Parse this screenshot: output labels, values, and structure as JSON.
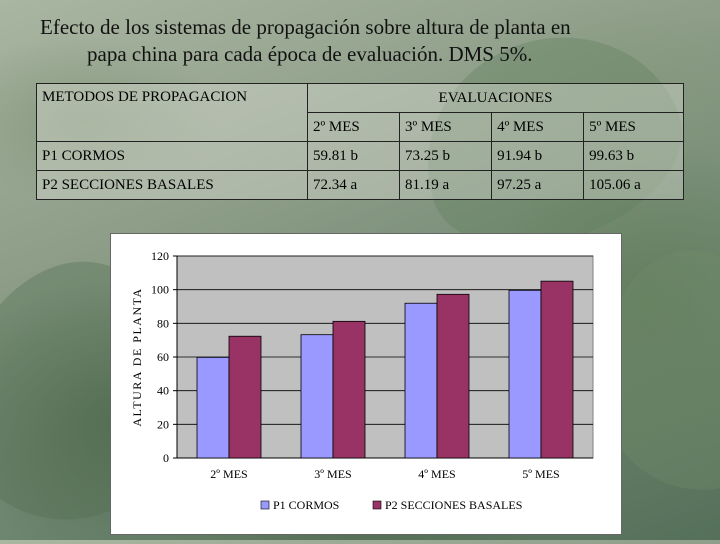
{
  "title": {
    "line1": "Efecto de los sistemas de propagación sobre altura de planta en",
    "line2": "papa china para cada época de evaluación. DMS 5%."
  },
  "table": {
    "header_method": "METODOS DE PROPAGACION",
    "header_eval": "EVALUACIONES",
    "months": [
      "2º MES",
      "3º MES",
      "4º MES",
      "5º MES"
    ],
    "rows": [
      {
        "label": "P1 CORMOS",
        "values": [
          "59.81 b",
          "73.25 b",
          "91.94 b",
          "99.63 b"
        ]
      },
      {
        "label": "P2 SECCIONES BASALES",
        "values": [
          "72.34 a",
          "81.19 a",
          "97.25 a",
          "105.06 a"
        ]
      }
    ]
  },
  "chart_data": {
    "type": "bar",
    "categories": [
      "2º MES",
      "3º MES",
      "4º MES",
      "5º MES"
    ],
    "series": [
      {
        "name": "P1 CORMOS",
        "values": [
          59.81,
          73.25,
          91.94,
          99.63
        ],
        "color": "#9999ff"
      },
      {
        "name": "P2 SECCIONES BASALES",
        "values": [
          72.34,
          81.19,
          97.25,
          105.06
        ],
        "color": "#993366"
      }
    ],
    "ylabel": "ALTURA DE PLANTA",
    "ylim": [
      0,
      120
    ],
    "yticks": [
      0,
      20,
      40,
      60,
      80,
      100,
      120
    ],
    "grid": true,
    "legend": "bottom",
    "plot_background": "#c0c0c0"
  }
}
